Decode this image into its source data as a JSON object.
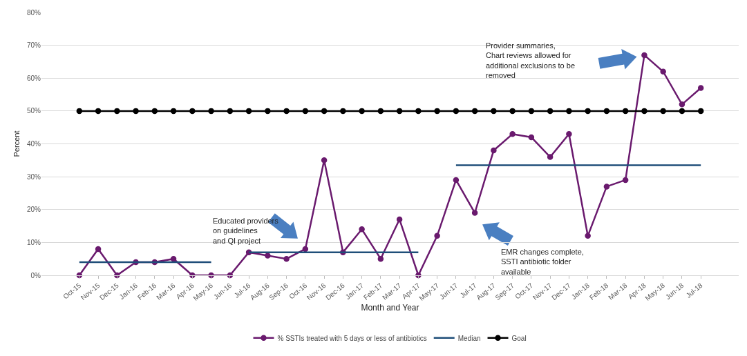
{
  "chart_data": {
    "type": "line",
    "xlabel": "Month and Year",
    "ylabel": "Percent",
    "categories": [
      "Oct-15",
      "Nov-15",
      "Dec-15",
      "Jan-16",
      "Feb-16",
      "Mar-16",
      "Apr-16",
      "May-16",
      "Jun-16",
      "Jul-16",
      "Aug-16",
      "Sep-16",
      "Oct-16",
      "Nov-16",
      "Dec-16",
      "Jan-17",
      "Feb-17",
      "Mar-17",
      "Apr-17",
      "May-17",
      "Jun-17",
      "Jul-17",
      "Aug-17",
      "Sep-17",
      "Oct-17",
      "Nov-17",
      "Dec-17",
      "Jan-18",
      "Feb-18",
      "Mar-18",
      "Apr-18",
      "May-18",
      "Jun-18",
      "Jul-18"
    ],
    "series": [
      {
        "name": "% SSTIs treated with 5 days or less of antibiotics",
        "color": "#6a1a6e",
        "marker": "circle",
        "values": [
          0,
          8,
          0,
          4,
          4,
          5,
          0,
          0,
          0,
          7,
          6,
          5,
          8,
          35,
          7,
          14,
          5,
          17,
          0,
          12,
          29,
          19,
          38,
          43,
          42,
          36,
          43,
          12,
          27,
          29,
          67,
          62,
          52,
          57
        ]
      },
      {
        "name": "Median",
        "color": "#1f4e79",
        "marker": "none",
        "values": [
          4,
          4,
          4,
          4,
          4,
          4,
          4,
          4,
          null,
          7,
          7,
          7,
          7,
          7,
          7,
          7,
          7,
          7,
          7,
          null,
          33.5,
          33.5,
          33.5,
          33.5,
          33.5,
          33.5,
          33.5,
          33.5,
          33.5,
          33.5,
          33.5,
          33.5,
          33.5,
          33.5
        ]
      },
      {
        "name": "Goal",
        "color": "#000000",
        "marker": "circle",
        "values": [
          50,
          50,
          50,
          50,
          50,
          50,
          50,
          50,
          50,
          50,
          50,
          50,
          50,
          50,
          50,
          50,
          50,
          50,
          50,
          50,
          50,
          50,
          50,
          50,
          50,
          50,
          50,
          50,
          50,
          50,
          50,
          50,
          50,
          50
        ]
      }
    ],
    "ylim": [
      0,
      80
    ],
    "yticks": [
      {
        "value": 0,
        "label": "0%"
      },
      {
        "value": 10,
        "label": "10%"
      },
      {
        "value": 20,
        "label": "20%"
      },
      {
        "value": 30,
        "label": "30%"
      },
      {
        "value": 40,
        "label": "40%"
      },
      {
        "value": 50,
        "label": "50%"
      },
      {
        "value": 60,
        "label": "60%"
      },
      {
        "value": 70,
        "label": "70%"
      },
      {
        "value": 80,
        "label": "80%"
      }
    ],
    "grid": "y",
    "legend": "bottom",
    "line_style": "solid",
    "annotations": [
      "Educated providers\non guidelines\nand QI project",
      "EMR changes complete,\nSSTI antibiotic folder\navailable",
      "Provider summaries,\nChart reviews allowed for\nadditional exclusions to be\nremoved"
    ]
  }
}
